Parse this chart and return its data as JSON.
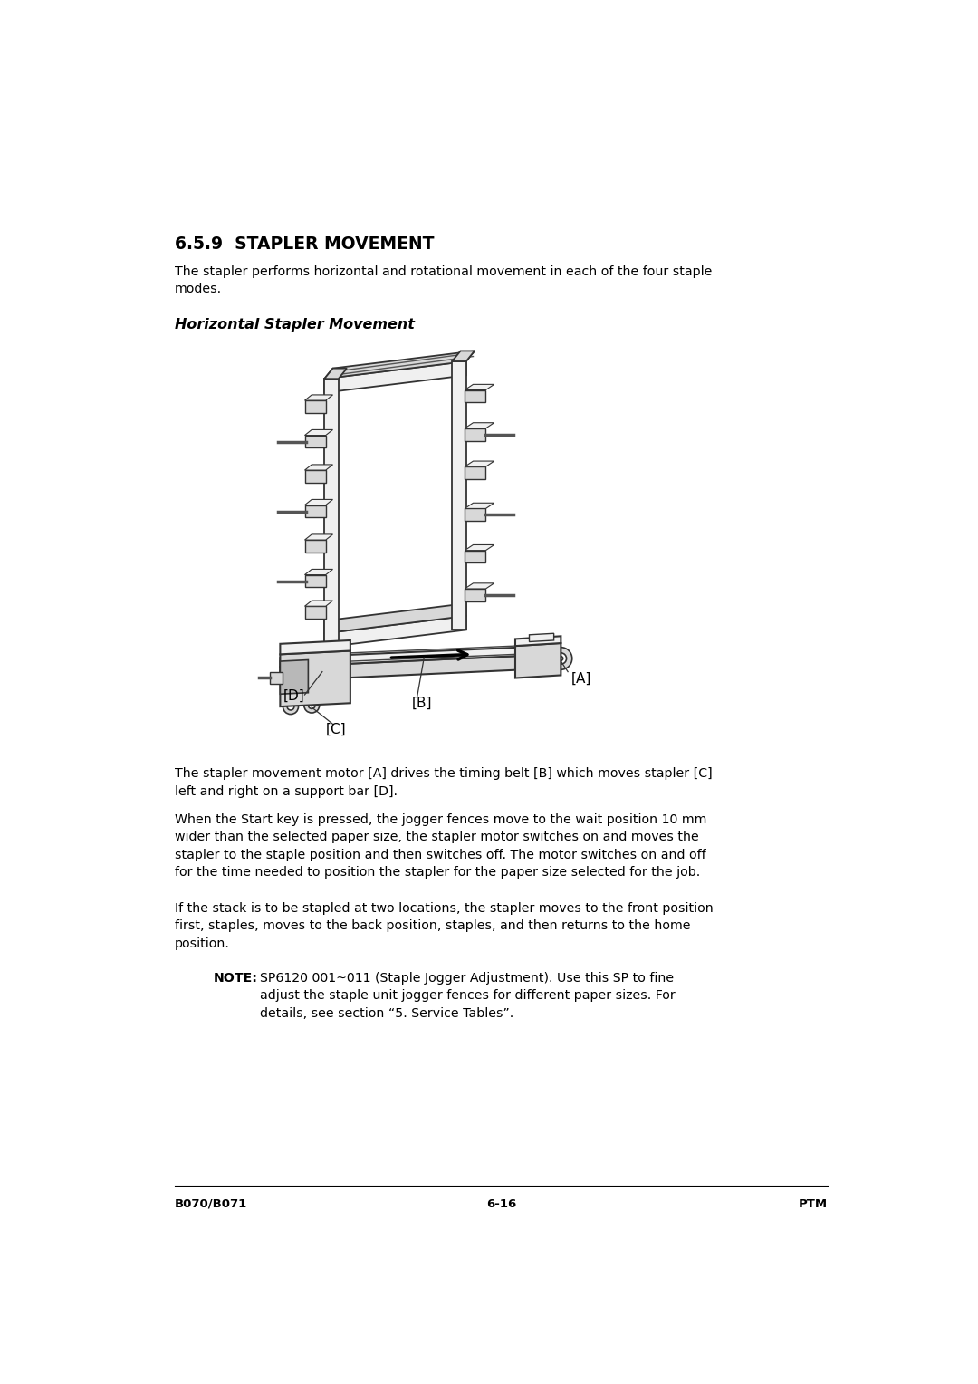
{
  "bg_color": "#ffffff",
  "title": "6.5.9  STAPLER MOVEMENT",
  "title_fontsize": 13.5,
  "subtitle": "Horizontal Stapler Movement",
  "subtitle_fontsize": 11.5,
  "body_fontsize": 10.2,
  "note_fontsize": 10.2,
  "para1": "The stapler performs horizontal and rotational movement in each of the four staple\nmodes.",
  "para2": "The stapler movement motor [A] drives the timing belt [B] which moves stapler [C]\nleft and right on a support bar [D].",
  "para3": "When the Start key is pressed, the jogger fences move to the wait position 10 mm\nwider than the selected paper size, the stapler motor switches on and moves the\nstapler to the staple position and then switches off. The motor switches on and off\nfor the time needed to position the stapler for the paper size selected for the job.",
  "para4": "If the stack is to be stapled at two locations, the stapler moves to the front position\nfirst, staples, moves to the back position, staples, and then returns to the home\nposition.",
  "note_label": "NOTE:",
  "note_text": "SP6120 001~011 (Staple Jogger Adjustment). Use this SP to fine\nadjust the staple unit jogger fences for different paper sizes. For\ndetails, see section “5. Service Tables”.",
  "footer_left": "B070/B071",
  "footer_center": "6-16",
  "footer_right": "PTM",
  "label_A": "[A]",
  "label_B": "[B]",
  "label_C": "[C]",
  "label_D": "[D]",
  "text_color": "#000000",
  "line_color": "#333333",
  "fill_light": "#f0f0f0",
  "fill_mid": "#d8d8d8",
  "fill_dark": "#b8b8b8"
}
